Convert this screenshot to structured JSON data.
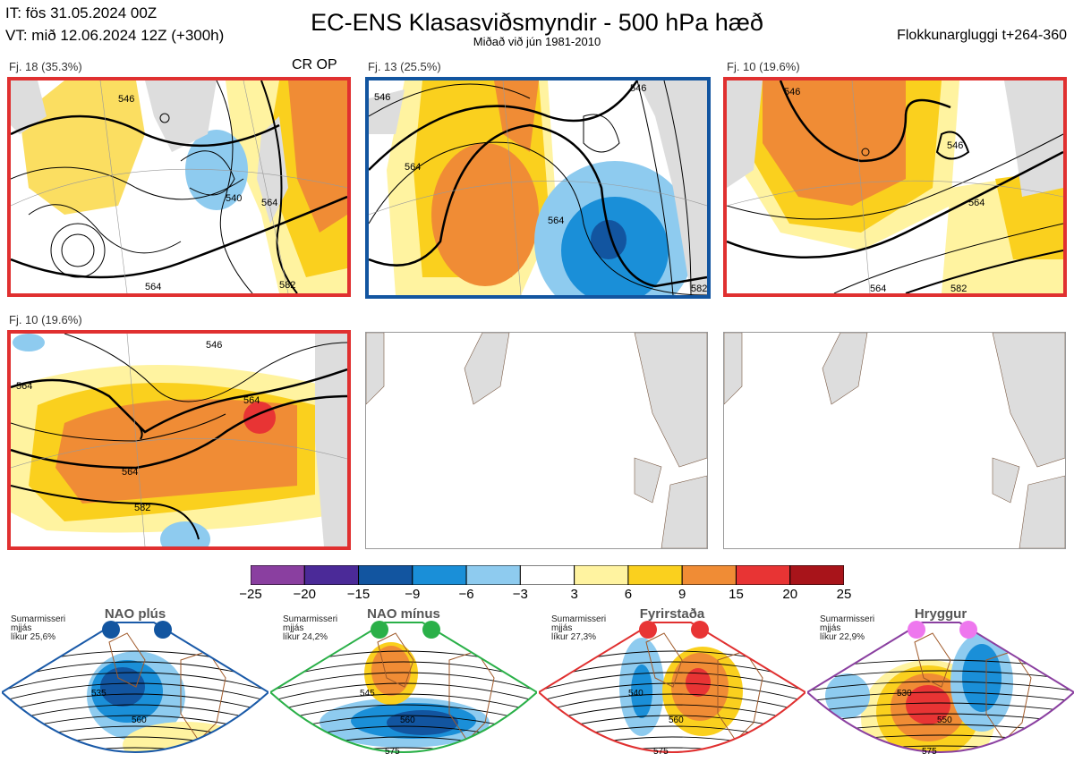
{
  "header": {
    "init_time": "IT: fös 31.05.2024 00Z",
    "valid_time": "VT: mið 12.06.2024 12Z  (+300h)",
    "title": "EC-ENS Klasasviðsmyndir - 500 hPa hæð",
    "subtitle": "Miðað við jún 1981-2010",
    "window": "Flokkunargluggi t+264-360"
  },
  "panels": [
    {
      "label": "Fj. 18 (35.3%)",
      "tag": "CR OP",
      "frame_color": "#e03030",
      "contours": [
        "546",
        "564",
        "564",
        "546",
        "540",
        "564",
        "582",
        "582"
      ]
    },
    {
      "label": "Fj. 13 (25.5%)",
      "tag": "",
      "frame_color": "#1a5aa8",
      "contours": [
        "546",
        "546",
        "564",
        "564",
        "546",
        "564",
        "582"
      ]
    },
    {
      "label": "Fj. 10 (19.6%)",
      "tag": "",
      "frame_color": "#e03030",
      "contours": [
        "546",
        "546",
        "564",
        "564",
        "582"
      ]
    },
    {
      "label": "Fj. 10 (19.6%)",
      "tag": "",
      "frame_color": "#e03030",
      "contours": [
        "546",
        "564",
        "564",
        "546",
        "564",
        "582",
        "582"
      ]
    }
  ],
  "colorbar": {
    "ticks": [
      "−25",
      "−20",
      "−15",
      "−9",
      "−6",
      "−3",
      "3",
      "6",
      "9",
      "15",
      "20",
      "25"
    ],
    "colors": [
      "#8a3fa0",
      "#4b2a98",
      "#1255a0",
      "#1a8fd8",
      "#8ecbef",
      "#ffffff",
      "#fff3a0",
      "#fad01e",
      "#f08c35",
      "#e83434",
      "#a8141a"
    ]
  },
  "regimes": [
    {
      "name": "NAO plús",
      "note": [
        "Sumarmisseri",
        "mjjás",
        "líkur 25,6%"
      ],
      "dot_color": "#1255a0",
      "frame_color": "#1a5aa8",
      "contours": [
        "535",
        "560"
      ]
    },
    {
      "name": "NAO mínus",
      "note": [
        "Sumarmisseri",
        "mjjás",
        "líkur 24,2%"
      ],
      "dot_color": "#2ab048",
      "frame_color": "#2ab048",
      "contours": [
        "545",
        "560",
        "575"
      ]
    },
    {
      "name": "Fyrirstaða",
      "note": [
        "Sumarmisseri",
        "mjjás",
        "líkur 27,3%"
      ],
      "dot_color": "#e83434",
      "frame_color": "#e03030",
      "contours": [
        "540",
        "560",
        "575"
      ]
    },
    {
      "name": "Hryggur",
      "note": [
        "Sumarmisseri",
        "mjjás",
        "líkur 22,9%"
      ],
      "dot_color": "#ee77ee",
      "frame_color": "#8a3fa0",
      "contours": [
        "530",
        "550",
        "575"
      ]
    }
  ]
}
